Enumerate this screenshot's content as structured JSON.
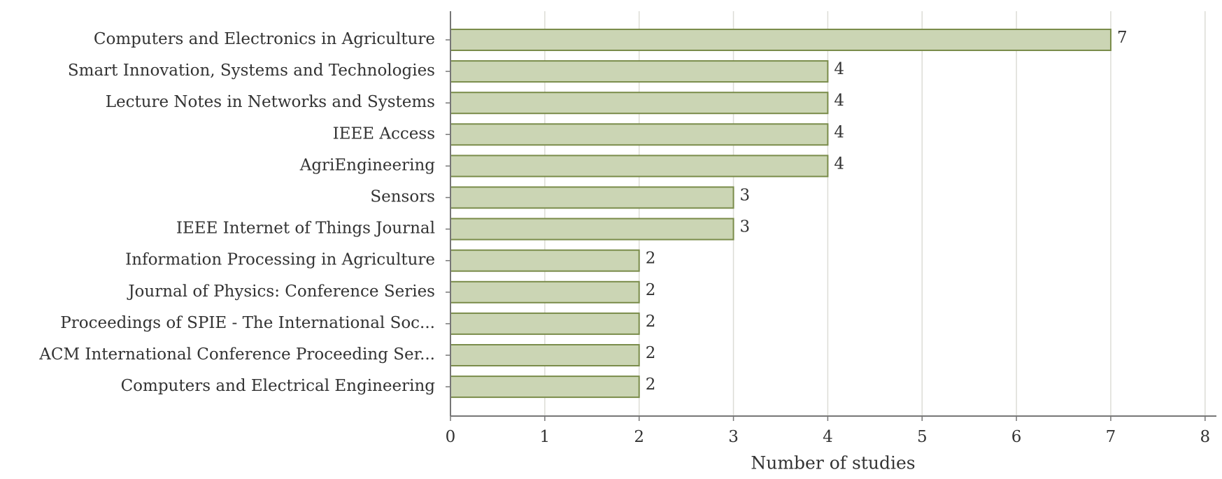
{
  "chart_data": {
    "type": "barh",
    "categories": [
      "Computers and Electronics in Agriculture",
      "Smart Innovation, Systems and Technologies",
      "Lecture Notes in Networks and Systems",
      "IEEE Access",
      "AgriEngineering",
      "Sensors",
      "IEEE Internet of Things Journal",
      "Information Processing in Agriculture",
      "Journal of Physics: Conference Series",
      "Proceedings of SPIE - The International Soc...",
      "ACM International Conference Proceeding Ser...",
      "Computers and Electrical Engineering"
    ],
    "values": [
      7,
      4,
      4,
      4,
      4,
      3,
      3,
      2,
      2,
      2,
      2,
      2
    ],
    "color": "#cbd5b4",
    "edge_color": "#7a8c4a",
    "xlabel": "Number of studies",
    "xlim": [
      0,
      8.12
    ],
    "xticks": [
      0,
      1,
      2,
      3,
      4,
      5,
      6,
      7,
      8
    ],
    "grid": true
  }
}
